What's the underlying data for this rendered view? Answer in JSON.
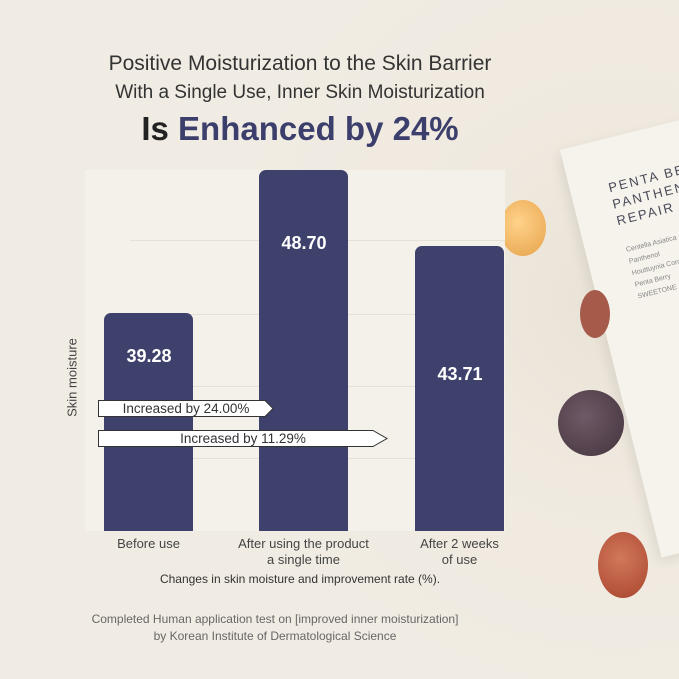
{
  "title": {
    "line1": "Positive Moisturization to the Skin Barrier",
    "line2": "With a Single Use, Inner Skin Moisturization",
    "line3_prefix": "Is ",
    "line3_accent": "Enhanced by 24%"
  },
  "colors": {
    "bar": "#3e416b",
    "accent": "#3c3f6b"
  },
  "chart_data": {
    "type": "bar",
    "categories": [
      "Before use",
      "After using the product a single time",
      "After 2 weeks of use"
    ],
    "category_lines": [
      [
        "Before use"
      ],
      [
        "After using the product",
        "a single time"
      ],
      [
        "After 2 weeks",
        "of use"
      ]
    ],
    "values": [
      39.28,
      48.7,
      43.71
    ],
    "value_labels": [
      "39.28",
      "48.70",
      "43.71"
    ],
    "ylabel": "Skin moisture",
    "xlabel": "Changes in skin moisture and improvement rate (%).",
    "ylim": [
      25,
      48.7
    ],
    "grid": true,
    "annotations": [
      "Increased by 24.00%",
      "Increased by 11.29%"
    ]
  },
  "footer": {
    "line1": "Completed Human application test on [improved inner moisturization]",
    "line2": "by Korean Institute of Dermatological Science"
  },
  "product": {
    "name_lines": [
      "PENTA BERRY",
      "PANTHENOL",
      "REPAIR CREAM"
    ],
    "ingredients": [
      "Centella Asiatica",
      "Panthenol",
      "Houttuynia Cordata",
      "Penta Berry",
      "SWEETONE"
    ]
  }
}
